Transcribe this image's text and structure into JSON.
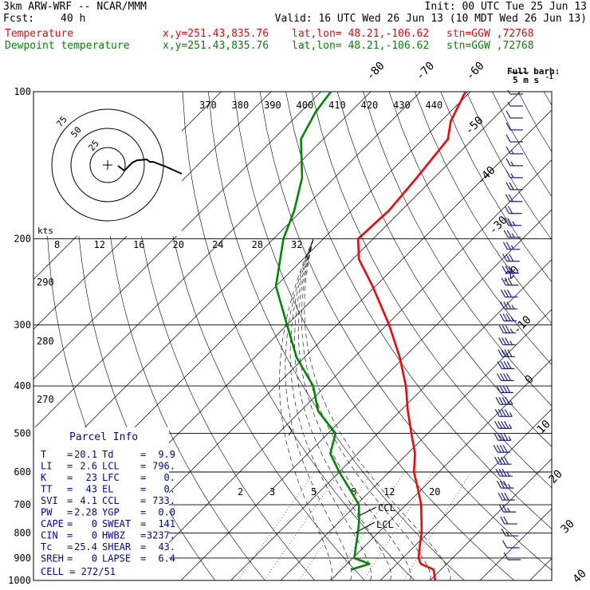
{
  "header": {
    "model": "3km ARW-WRF -- NCAR/MMM",
    "init": "Init: 00 UTC Tue 25 Jun 13",
    "fcst_label": "Fcst:",
    "fcst_value": "40 h",
    "valid": "Valid: 16 UTC Wed 26 Jun 13 (10 MDT Wed 26 Jun 13)",
    "temp_label": "Temperature",
    "dew_label": "Dewpoint temperature",
    "xy": "x,y=251.43,835.76",
    "latlon": "lat,lon= 48.21,-106.62",
    "stn": "stn=GGW ,72768"
  },
  "barb_legend": {
    "title": "Full barb:",
    "value": "5 m s",
    "unit_sup": "-1"
  },
  "hodograph": {
    "unit": "kts",
    "ring_labels": [
      "25",
      "50",
      "75"
    ]
  },
  "parcel_info": {
    "title": "Parcel Info",
    "rows": [
      {
        "k1": "T",
        "v1": "20.1",
        "k2": "Td",
        "v2": "9.9"
      },
      {
        "k1": "LI",
        "v1": "2.6",
        "k2": "LCL",
        "v2": "796."
      },
      {
        "k1": "K",
        "v1": "23",
        "k2": "LFC",
        "v2": "0."
      },
      {
        "k1": "TT",
        "v1": "43",
        "k2": "EL",
        "v2": "0."
      },
      {
        "k1": "SVI",
        "v1": "4.1",
        "k2": "CCL",
        "v2": "733."
      },
      {
        "k1": "PW",
        "v1": "2.28",
        "k2": "YGP",
        "v2": "0.0"
      },
      {
        "k1": "CAPE",
        "v1": "0",
        "k2": "SWEAT",
        "v2": "141"
      },
      {
        "k1": "CIN",
        "v1": "0",
        "k2": "HWBZ",
        "v2": "3237."
      },
      {
        "k1": "Tc",
        "v1": "25.4",
        "k2": "SHEAR",
        "v2": "43."
      },
      {
        "k1": "SREH",
        "v1": "0",
        "k2": "LAPSE",
        "v2": "6.4"
      }
    ],
    "cell": "CELL = 272/51"
  },
  "annotations": {
    "ccl": "CCL",
    "lcl": "LCL"
  },
  "chart_data": {
    "type": "line",
    "diagram": "skew-T log-p",
    "pressure_levels": [
      100,
      200,
      300,
      400,
      500,
      600,
      700,
      800,
      900,
      1000
    ],
    "isotherm_labels": [
      "-80",
      "-70",
      "-60",
      "-50",
      "-40",
      "-30",
      "-20",
      "-10",
      "0",
      "10",
      "20",
      "30",
      "40"
    ],
    "theta_labels": [
      "370",
      "380",
      "390",
      "400",
      "410",
      "420",
      "430",
      "440"
    ],
    "theta_side_labels": [
      "290",
      "280",
      "270"
    ],
    "theta_e_labels": [
      "8",
      "12",
      "16",
      "20",
      "24",
      "28",
      "32"
    ],
    "mixing_ratio_labels": [
      "2",
      "3",
      "5",
      "8",
      "12",
      "20"
    ],
    "series": [
      {
        "name": "Temperature",
        "color": "#ff0000",
        "points": [
          [
            1000,
            31.0
          ],
          [
            950,
            28.5
          ],
          [
            925,
            24.8
          ],
          [
            900,
            23.2
          ],
          [
            850,
            21.0
          ],
          [
            800,
            18.8
          ],
          [
            750,
            16.0
          ],
          [
            700,
            13.0
          ],
          [
            650,
            9.2
          ],
          [
            600,
            5.0
          ],
          [
            550,
            1.5
          ],
          [
            500,
            -3.3
          ],
          [
            450,
            -8.5
          ],
          [
            400,
            -13.9
          ],
          [
            350,
            -20.8
          ],
          [
            300,
            -29.5
          ],
          [
            250,
            -40.6
          ],
          [
            220,
            -48.8
          ],
          [
            200,
            -53.0
          ],
          [
            175,
            -52.5
          ],
          [
            150,
            -53.5
          ],
          [
            125,
            -55.0
          ],
          [
            115,
            -58.0
          ],
          [
            100,
            -61.0
          ]
        ]
      },
      {
        "name": "Dewpoint temperature",
        "color": "#008800",
        "points": [
          [
            950,
            12.0
          ],
          [
            925,
            14.5
          ],
          [
            900,
            10.3
          ],
          [
            850,
            8.2
          ],
          [
            800,
            6.0
          ],
          [
            750,
            3.5
          ],
          [
            700,
            0.5
          ],
          [
            650,
            -4.5
          ],
          [
            600,
            -10.0
          ],
          [
            550,
            -15.5
          ],
          [
            500,
            -18.5
          ],
          [
            450,
            -26.5
          ],
          [
            400,
            -32.5
          ],
          [
            350,
            -41.5
          ],
          [
            300,
            -50.0
          ],
          [
            250,
            -60.0
          ],
          [
            200,
            -68.0
          ],
          [
            175,
            -71.5
          ],
          [
            150,
            -76.5
          ],
          [
            125,
            -84.5
          ],
          [
            110,
            -87.0
          ],
          [
            100,
            -88.0
          ]
        ]
      }
    ],
    "wind_barbs_kts": [
      5,
      8,
      10,
      12,
      14,
      15,
      16,
      18,
      20,
      22,
      22,
      25,
      25,
      28,
      30,
      30,
      32,
      32,
      35,
      35,
      38,
      38,
      40,
      40,
      42,
      42,
      45,
      45,
      45,
      45,
      42,
      40,
      38,
      35,
      30,
      25,
      20,
      15,
      12,
      10
    ]
  }
}
